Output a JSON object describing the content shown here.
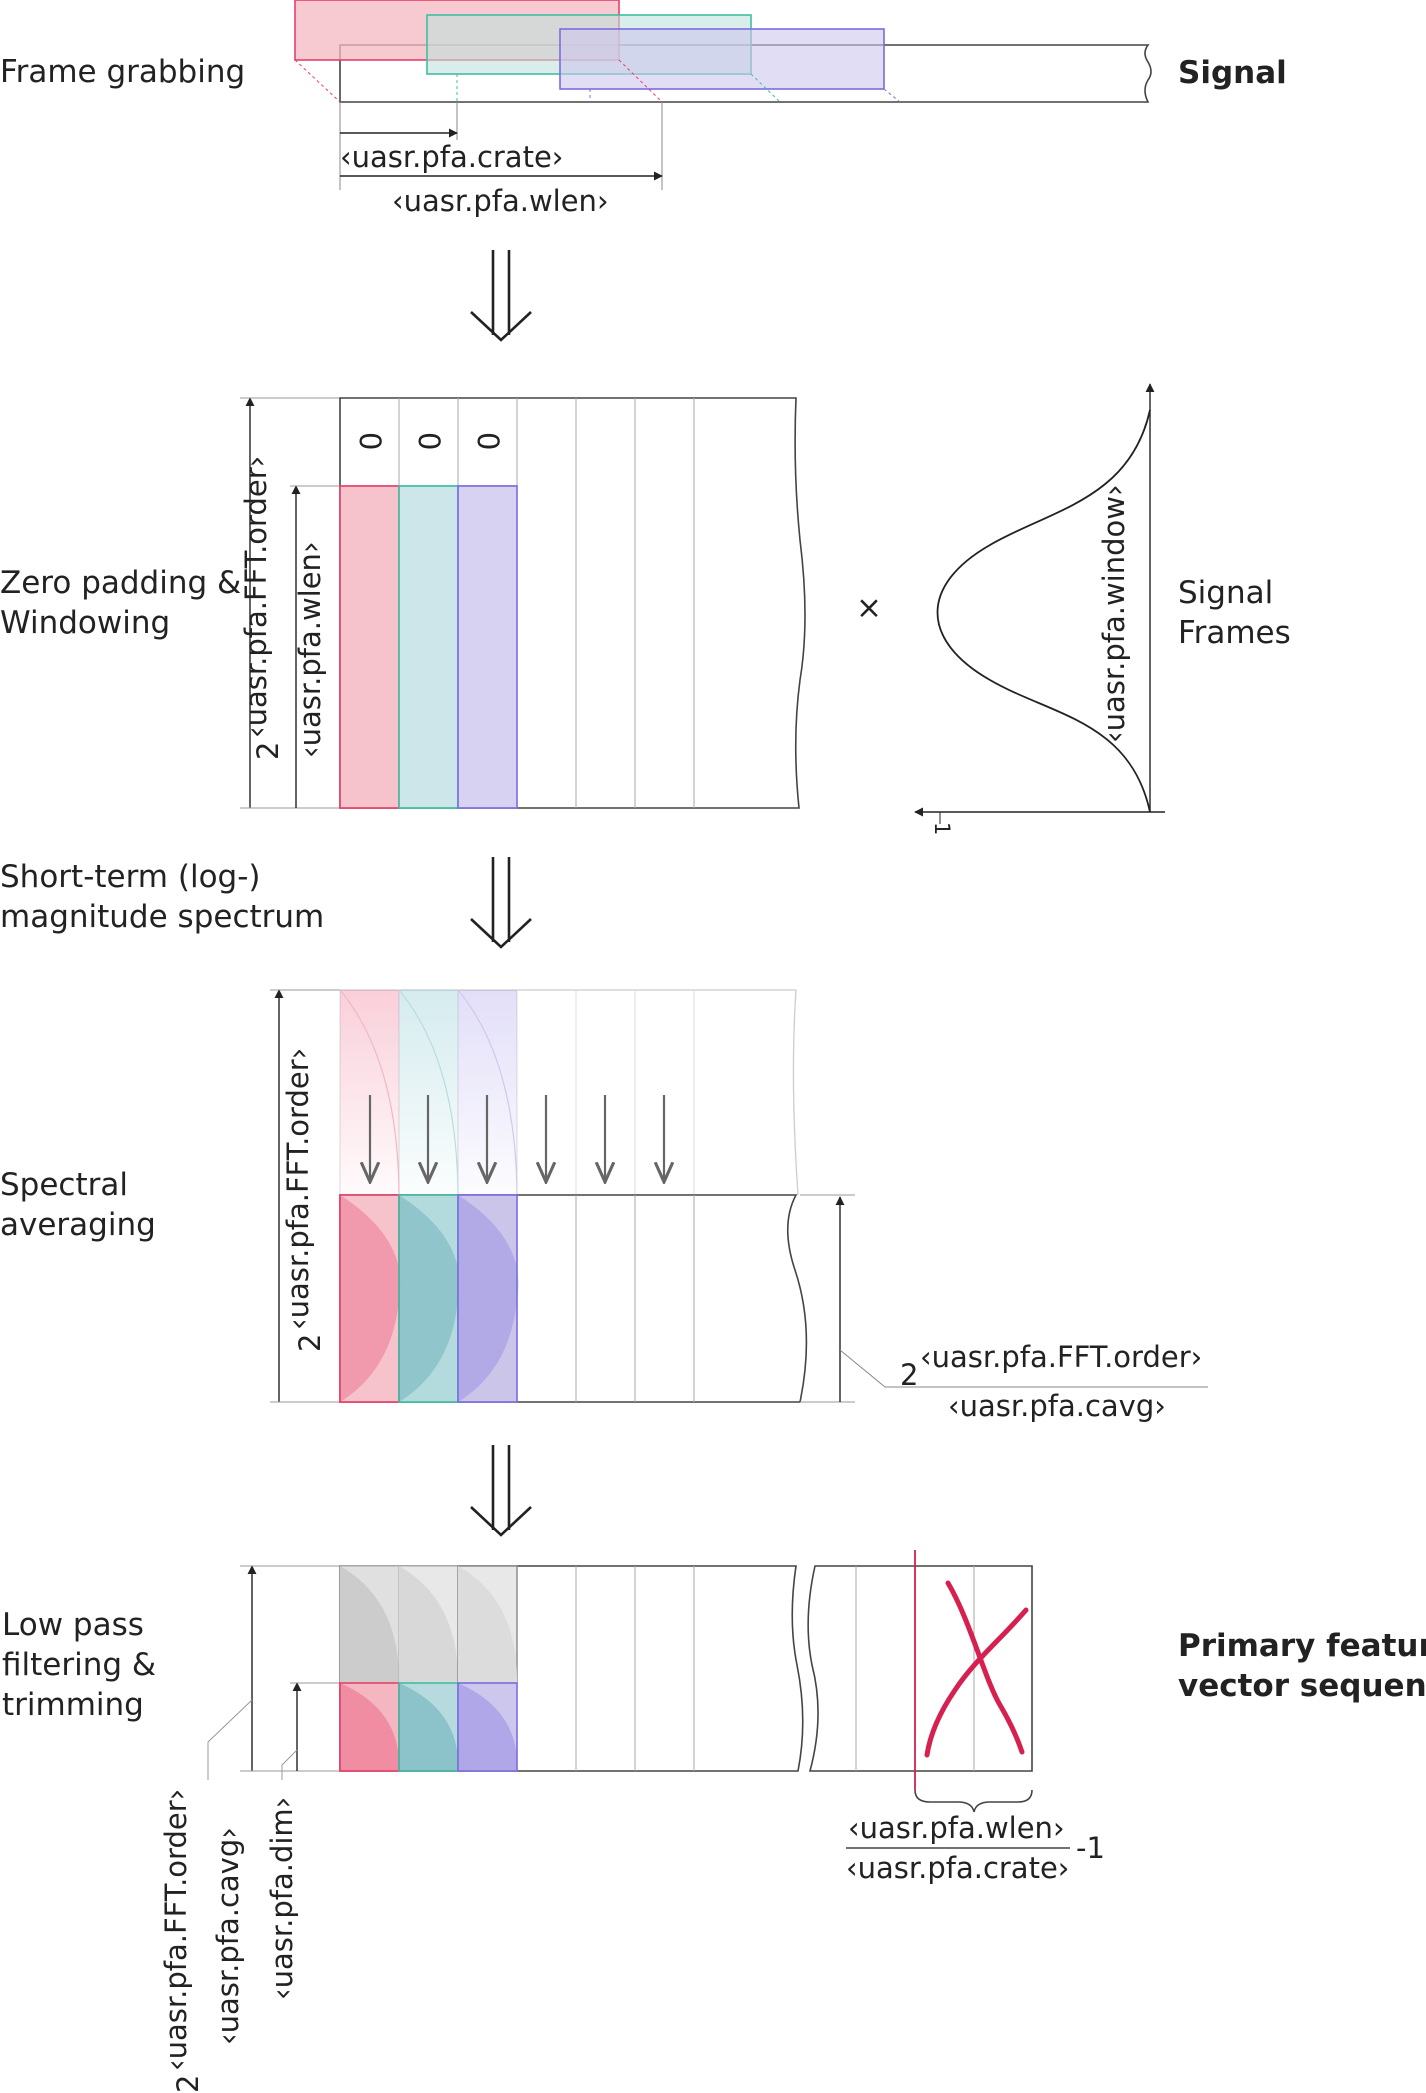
{
  "stages": {
    "frame_grabbing": "Frame grabbing",
    "zero_padding": [
      "Zero padding &",
      "Windowing"
    ],
    "log_magnitude": [
      "Short-term (log-)",
      "magnitude spectrum"
    ],
    "spectral_averaging": [
      "Spectral",
      "averaging"
    ],
    "low_pass": [
      "Low pass",
      "filtering &",
      "trimming"
    ]
  },
  "outputs": {
    "signal": "Signal",
    "signal_frames": [
      "Signal",
      "Frames"
    ],
    "primary_feature": [
      "Primary feature",
      "vector sequence"
    ]
  },
  "params": {
    "crate": "‹uasr.pfa.crate›",
    "wlen": "‹uasr.pfa.wlen›",
    "fft_order": "‹uasr.pfa.FFT.order›",
    "window": "‹uasr.pfa.window›",
    "cavg": "‹uasr.pfa.cavg›",
    "dim": "‹uasr.pfa.dim›",
    "two": "2",
    "minus_one": "-1",
    "one": "1",
    "zero": "0",
    "times": "×"
  },
  "colors": {
    "frame1": "#e8406a",
    "frame2": "#3fbfa0",
    "frame3": "#7a6de0",
    "feature_cross": "#d62050",
    "line": "#444444",
    "grid": "#aaaaaa"
  }
}
